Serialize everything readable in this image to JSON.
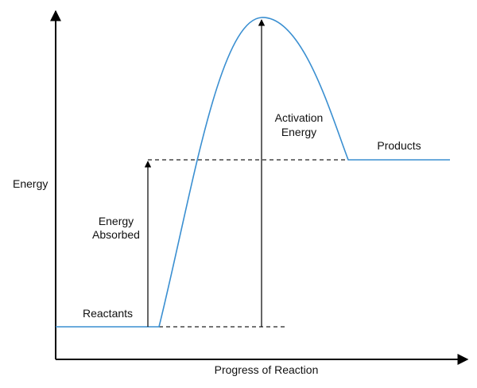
{
  "axes": {
    "y_label": "Energy",
    "x_label": "Progress of Reaction"
  },
  "labels": {
    "reactants": "Reactants",
    "products": "Products",
    "energy_absorbed_line1": "Energy",
    "energy_absorbed_line2": "Absorbed",
    "activation_energy_line1": "Activation",
    "activation_energy_line2": "Energy"
  },
  "colors": {
    "curve": "#3a8fd1",
    "axis": "#000000",
    "guide": "#222222"
  }
}
